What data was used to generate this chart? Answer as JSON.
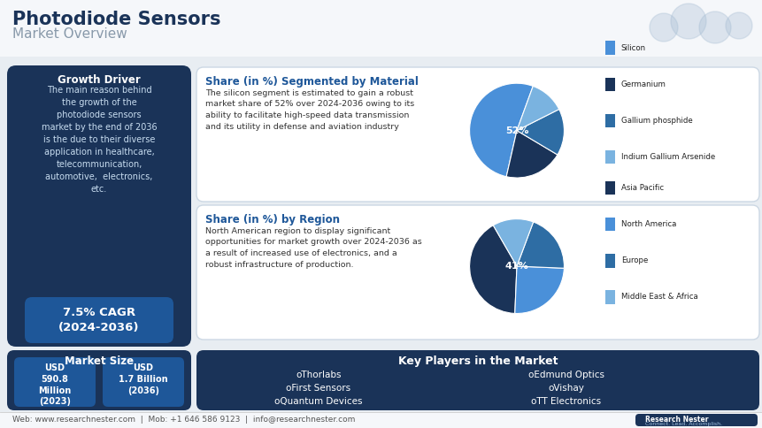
{
  "title_main": "Photodiode Sensors",
  "title_sub": "Market Overview",
  "bg_color": "#e8edf2",
  "dark_blue": "#1a3358",
  "mid_blue": "#1e5799",
  "light_blue": "#4a90d9",
  "lighter_blue": "#7ab3e0",
  "steel_blue": "#2e6da4",
  "white": "#ffffff",
  "growth_driver_title": "Growth Driver",
  "growth_driver_text": "The main reason behind\nthe growth of the\nphotodiode sensors\nmarket by the end of 2036\nis the due to their diverse\napplication in healthcare,\ntelecommunication,\nautomotive,  electronics,\netc.",
  "cagr_text": "7.5% CAGR\n(2024-2036)",
  "material_title": "Share (in %) Segmented by Material",
  "material_text": "The silicon segment is estimated to gain a robust\nmarket share of 52% over 2024-2036 owing to its\nability to facilitate high-speed data transmission\nand its utility in defense and aviation industry",
  "material_slices": [
    52,
    20,
    16,
    12
  ],
  "material_labels": [
    "Silicon",
    "Germanium",
    "Gallium phosphide",
    "Indium Gallium Arsenide"
  ],
  "material_colors": [
    "#4a90d9",
    "#1a3358",
    "#2e6da4",
    "#7ab3e0"
  ],
  "material_pct_label": "52%",
  "region_title": "Share (in %) by Region",
  "region_text": "North American region to display significant\nopportunities for market growth over 2024-2036 as\na result of increased use of electronics, and a\nrobust infrastructure of production.",
  "region_slices": [
    41,
    25,
    20,
    14
  ],
  "region_labels": [
    "Asia Pacific",
    "North America",
    "Europe",
    "Middle East & Africa"
  ],
  "region_colors": [
    "#1a3358",
    "#4a90d9",
    "#2e6da4",
    "#7ab3e0"
  ],
  "region_pct_label": "41%",
  "market_size_title": "Market Size",
  "market_size_1": "USD\n590.8\nMillion\n(2023)",
  "market_size_2": "USD\n1.7 Billion\n(2036)",
  "key_players_title": "Key Players in the Market",
  "key_players_left": [
    "oThorlabs",
    "oFirst Sensors",
    "oQuantum Devices"
  ],
  "key_players_right": [
    "oEdmund Optics",
    "oVishay",
    "oTT Electronics"
  ],
  "footer_text": "Web: www.researchnester.com  |  Mob: +1 646 586 9123  |  info@researchnester.com"
}
